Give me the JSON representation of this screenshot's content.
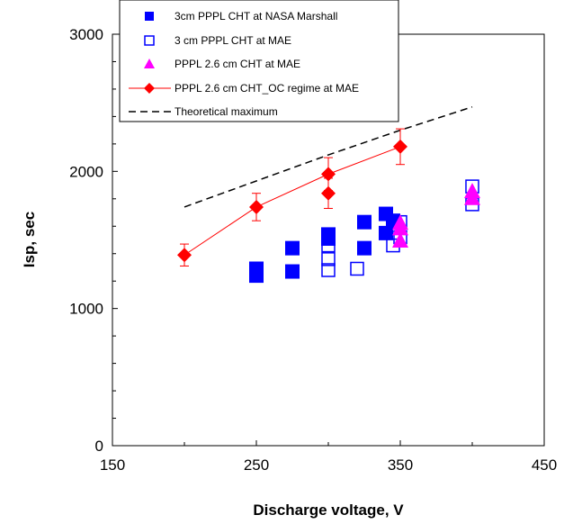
{
  "chart_data": {
    "type": "scatter",
    "title": "",
    "xlabel": "Discharge voltage, V",
    "ylabel": "Isp, sec",
    "xlim": [
      150,
      450
    ],
    "ylim": [
      0,
      3000
    ],
    "x_ticks": [
      150,
      250,
      350,
      450
    ],
    "y_ticks": [
      0,
      1000,
      2000,
      3000
    ],
    "x_tick_labels": [
      "150",
      "250",
      "350",
      "450"
    ],
    "y_tick_labels": [
      "0",
      "1000",
      "2000",
      "3000"
    ],
    "grid": false,
    "legend_position": "top-center",
    "series": [
      {
        "name": "3cm PPPL CHT at NASA Marshall",
        "marker": "filled-square",
        "color": "#0000ff",
        "points": [
          [
            250,
            1240
          ],
          [
            250,
            1290
          ],
          [
            275,
            1270
          ],
          [
            275,
            1440
          ],
          [
            300,
            1510
          ],
          [
            300,
            1540
          ],
          [
            325,
            1440
          ],
          [
            325,
            1630
          ],
          [
            340,
            1550
          ],
          [
            340,
            1690
          ],
          [
            345,
            1640
          ]
        ]
      },
      {
        "name": "3 cm PPPL CHT at MAE",
        "marker": "open-square",
        "color": "#0000ff",
        "points": [
          [
            300,
            1280
          ],
          [
            300,
            1360
          ],
          [
            300,
            1460
          ],
          [
            320,
            1290
          ],
          [
            345,
            1460
          ],
          [
            350,
            1520
          ],
          [
            350,
            1630
          ],
          [
            400,
            1760
          ],
          [
            400,
            1890
          ]
        ]
      },
      {
        "name": "PPPL 2.6 cm CHT at MAE",
        "marker": "filled-triangle",
        "color": "#ff00ff",
        "points": [
          [
            350,
            1490
          ],
          [
            350,
            1580
          ],
          [
            350,
            1620
          ],
          [
            400,
            1800
          ],
          [
            400,
            1850
          ]
        ]
      },
      {
        "name": "PPPL 2.6 cm CHT_OC regime at MAE",
        "marker": "filled-diamond",
        "color": "#ff0000",
        "connected": true,
        "error_bars": true,
        "points": [
          [
            200,
            1390,
            80
          ],
          [
            250,
            1740,
            100
          ],
          [
            300,
            1980,
            120
          ],
          [
            350,
            2180,
            130
          ]
        ],
        "extra_points": [
          [
            300,
            1840,
            110
          ]
        ]
      },
      {
        "name": "Theoretical maximum",
        "marker": "none",
        "line": "dashed",
        "color": "#000000",
        "points": [
          [
            200,
            1740
          ],
          [
            250,
            1930
          ],
          [
            300,
            2120
          ],
          [
            350,
            2300
          ],
          [
            400,
            2470
          ]
        ]
      }
    ]
  }
}
